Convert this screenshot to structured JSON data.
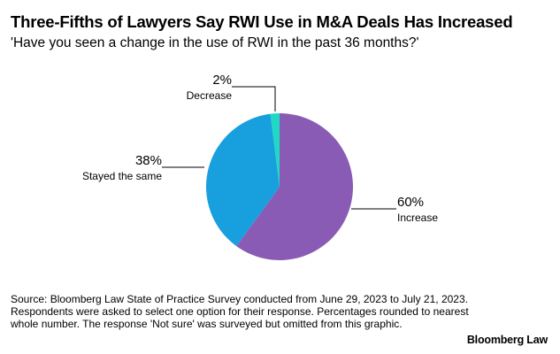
{
  "chart_data": {
    "type": "pie",
    "title": "Three-Fifths of Lawyers Say RWI Use in M&A Deals Has Increased",
    "subtitle": "'Have you seen a change in the use of RWI in the past 36 months?'",
    "slices": [
      {
        "label": "Increase",
        "value": 60,
        "value_label": "60%",
        "color": "#8a5bb5"
      },
      {
        "label": "Stayed the same",
        "value": 38,
        "value_label": "38%",
        "color": "#189fdd"
      },
      {
        "label": "Decrease",
        "value": 2,
        "value_label": "2%",
        "color": "#1fd9c4"
      }
    ],
    "grid": false,
    "legend": "none"
  },
  "footer": {
    "source": "Source: Bloomberg Law State of Practice Survey conducted from June 29, 2023 to July 21, 2023. Respondents were asked to select one option for their response. Percentages rounded to nearest whole number. The response 'Not sure' was surveyed but omitted from this graphic.",
    "brand": "Bloomberg Law"
  }
}
